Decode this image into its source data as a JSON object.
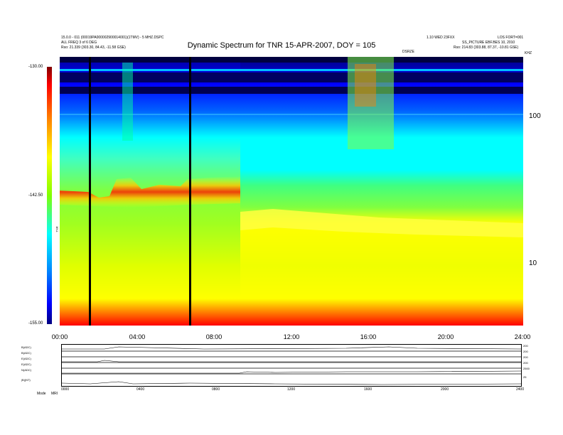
{
  "header": {
    "title": "Dynamic Spectrum for TNR 15-APR-2007, DOY = 105",
    "left_line1": "15.0.0 - 011 (00019PA000002900014001)(1TMV) - 5 MHZ.DSPC",
    "left_line2": "ALL FREQ 3 of 6 DEG",
    "left_line3": "Rso: 21.339 (303.30, 84.43, -11.58 GSE)",
    "right_line1": "1.10 WED 23FXX",
    "right_line2": "LOS FORT=001",
    "right_line3": "SS_PICTURE EBF.BES 10, 2010",
    "right_line4": "Rso: 214.83 (303.88, 87.37, -10.81 GSE)",
    "right_small": "KHZ",
    "mid_small": "DSRZE"
  },
  "colorbar": {
    "top_label": "-130.00",
    "mid_label": "-142.50",
    "bottom_label": "-155.00",
    "unit_label": "TNR",
    "colors": [
      "#800000",
      "#ff0000",
      "#ff8000",
      "#ffff00",
      "#80ff00",
      "#00ffff",
      "#0080ff",
      "#0000ff",
      "#000080"
    ]
  },
  "chart_data": {
    "type": "heatmap",
    "title": "Dynamic Spectrum for TNR 15-APR-2007, DOY = 105",
    "xlabel": "",
    "ylabel": "KHZ",
    "x_ticks": [
      "00:00",
      "04:00",
      "08:00",
      "12:00",
      "16:00",
      "20:00",
      "24:00"
    ],
    "x_range_hours": [
      0,
      24
    ],
    "y_ticks": [
      "100",
      "10"
    ],
    "y_scale": "log",
    "y_range_khz": [
      4,
      500
    ],
    "color_range_db": [
      -155,
      -130
    ],
    "data_gaps_hours": [
      1.55,
      6.75
    ],
    "features": [
      {
        "name": "low-frequency red band",
        "freq_khz_range": [
          4,
          6
        ],
        "level_db": -152
      },
      {
        "name": "enhanced plasma line",
        "time_hours": [
          0,
          9.3
        ],
        "freq_khz": 40,
        "level_db": -148
      },
      {
        "name": "post-shift plasma line",
        "time_hours": [
          9.3,
          24
        ],
        "freq_khz": 25,
        "level_db": -143
      },
      {
        "name": "type III bursts",
        "time_hours": [
          15.0,
          17.5
        ],
        "freq_khz_range": [
          60,
          500
        ]
      }
    ]
  },
  "mini_panels": {
    "rows": [
      {
        "left": "B(ADC)",
        "right_top": "200",
        "right_bottom": "0"
      },
      {
        "left": "B(ADC)",
        "right_top": "200",
        "right_bottom": "0"
      },
      {
        "left": "E(ADC)",
        "right_top": "200",
        "right_bottom": "0"
      },
      {
        "left": "E(ADC)",
        "right_top": "200",
        "right_bottom": "0"
      },
      {
        "left": "N(ADC)",
        "right_top": "2500",
        "right_bottom": "0"
      },
      {
        "left": "|B|(NT)",
        "right_top": "25",
        "right_bottom": "0"
      }
    ],
    "bottom_left_label": "Mode",
    "bottom_left_value": "MRI",
    "x_ticks": [
      "0000",
      "0400",
      "0800",
      "1200",
      "1600",
      "2000",
      "2400"
    ]
  }
}
